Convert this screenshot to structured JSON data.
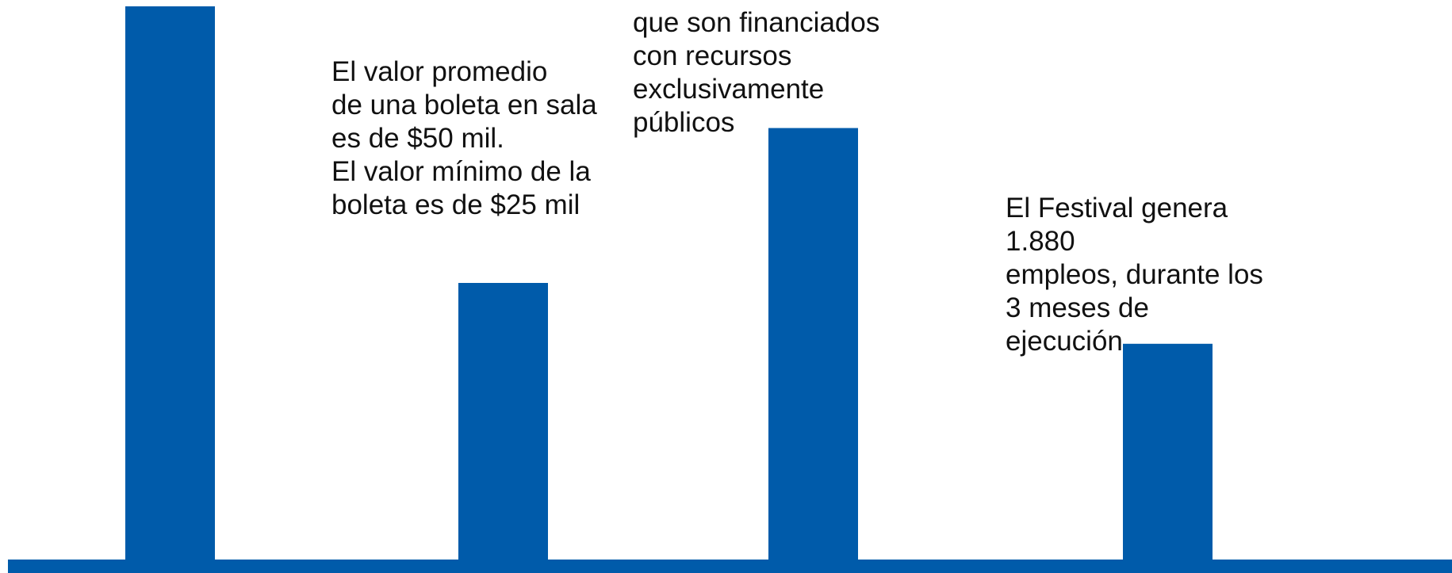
{
  "chart_data": {
    "type": "bar",
    "categories": [
      "",
      "",
      "",
      ""
    ],
    "values": [
      100,
      50,
      78,
      39
    ],
    "ylim": [
      0,
      100
    ],
    "colors": {
      "bar": "#005BAA",
      "axis": "#005BAA"
    },
    "grid": false,
    "legend": "none",
    "annotations": [
      [
        "El valor promedio",
        "de una boleta en sala",
        "es de $50 mil.",
        "El valor mínimo de la",
        "boleta es de $25 mil"
      ],
      [
        "que son financiados",
        "con recursos",
        "exclusivamente",
        "públicos"
      ],
      [
        "El Festival genera",
        "1.880",
        "empleos, durante los",
        "3 meses de",
        "ejecución"
      ]
    ]
  }
}
